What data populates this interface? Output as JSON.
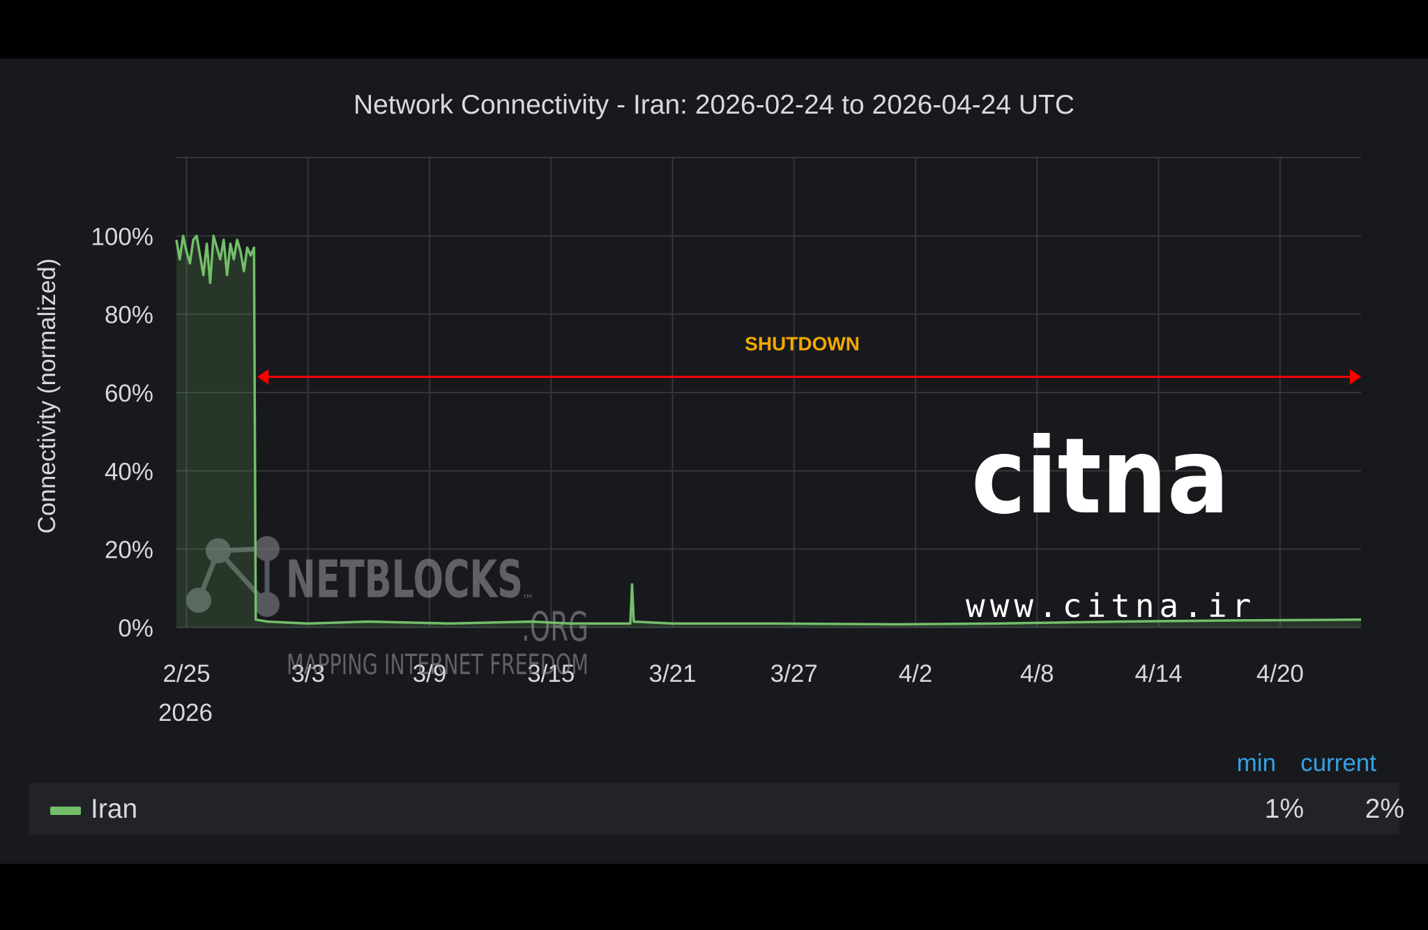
{
  "chart_data": {
    "type": "line",
    "title": "Network Connectivity - Iran: 2026-02-24 to 2026-04-24 UTC",
    "ylabel": "Connectivity (normalized)",
    "xlabel": "",
    "x_ticks": [
      "2/25",
      "3/3",
      "3/9",
      "3/15",
      "3/21",
      "3/27",
      "4/2",
      "4/8",
      "4/14",
      "4/20"
    ],
    "x_year_label": "2026",
    "y_ticks": [
      "0%",
      "20%",
      "40%",
      "60%",
      "80%",
      "100%"
    ],
    "ylim": [
      0,
      120
    ],
    "xlim": [
      "2026-02-24T12:00",
      "2026-04-24T00:00"
    ],
    "grid": true,
    "series": [
      {
        "name": "Iran",
        "color": "#73bf69",
        "fill": true,
        "points": [
          [
            "2026-02-24T12:00",
            99
          ],
          [
            "2026-02-24T16:00",
            94
          ],
          [
            "2026-02-24T20:00",
            100
          ],
          [
            "2026-02-25T00:00",
            96
          ],
          [
            "2026-02-25T04:00",
            93
          ],
          [
            "2026-02-25T08:00",
            99
          ],
          [
            "2026-02-25T12:00",
            100
          ],
          [
            "2026-02-25T16:00",
            95
          ],
          [
            "2026-02-25T20:00",
            90
          ],
          [
            "2026-02-26T00:00",
            98
          ],
          [
            "2026-02-26T04:00",
            88
          ],
          [
            "2026-02-26T08:00",
            100
          ],
          [
            "2026-02-26T12:00",
            97
          ],
          [
            "2026-02-26T16:00",
            94
          ],
          [
            "2026-02-26T20:00",
            99
          ],
          [
            "2026-02-27T00:00",
            90
          ],
          [
            "2026-02-27T04:00",
            98
          ],
          [
            "2026-02-27T08:00",
            94
          ],
          [
            "2026-02-27T12:00",
            99
          ],
          [
            "2026-02-27T16:00",
            96
          ],
          [
            "2026-02-27T20:00",
            91
          ],
          [
            "2026-02-28T00:00",
            97
          ],
          [
            "2026-02-28T04:00",
            95
          ],
          [
            "2026-02-28T08:00",
            97
          ],
          [
            "2026-02-28T10:00",
            2
          ],
          [
            "2026-03-01T00:00",
            1.5
          ],
          [
            "2026-03-03T00:00",
            1
          ],
          [
            "2026-03-06T00:00",
            1.5
          ],
          [
            "2026-03-10T00:00",
            1
          ],
          [
            "2026-03-14T00:00",
            1.5
          ],
          [
            "2026-03-16T00:00",
            1
          ],
          [
            "2026-03-18T22:00",
            1
          ],
          [
            "2026-03-19T00:00",
            11
          ],
          [
            "2026-03-19T02:00",
            1.5
          ],
          [
            "2026-03-21T00:00",
            1
          ],
          [
            "2026-03-26T00:00",
            1
          ],
          [
            "2026-04-01T00:00",
            0.8
          ],
          [
            "2026-04-06T00:00",
            1
          ],
          [
            "2026-04-12T00:00",
            1.5
          ],
          [
            "2026-04-18T00:00",
            1.8
          ],
          [
            "2026-04-24T00:00",
            2
          ]
        ]
      }
    ],
    "annotations": [
      {
        "text": "SHUTDOWN",
        "color": "#f2a800",
        "arrow_color": "#ff0000",
        "x_from": "2026-02-28T12:00",
        "x_to": "2026-04-24T00:00",
        "y": 64
      }
    ]
  },
  "legend": {
    "columns": [
      "min",
      "current"
    ],
    "rows": [
      {
        "name": "Iran",
        "min": "1%",
        "current": "2%"
      }
    ]
  },
  "watermarks": {
    "netblocks_name": "NETBLOCKS",
    "netblocks_suffix": ".ORG",
    "netblocks_tm": "™",
    "netblocks_tagline": "MAPPING INTERNET FREEDOM",
    "citna_logo": "citna",
    "citna_url": "www.citna.ir"
  }
}
